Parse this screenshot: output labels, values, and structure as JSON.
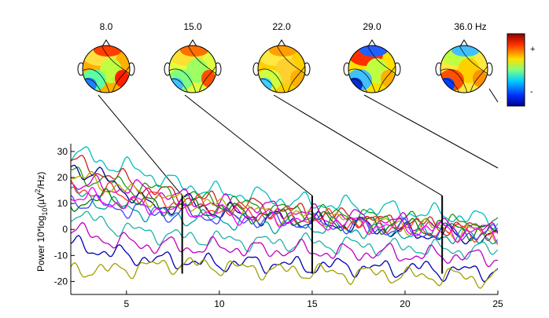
{
  "chart_data": {
    "type": "line",
    "ylabel_prefix": "Power 10*log",
    "ylabel_sub": "10",
    "ylabel_mid": "(µV",
    "ylabel_sup": "2",
    "ylabel_suffix": "/Hz)",
    "xlim": [
      2,
      25
    ],
    "ylim": [
      -25,
      33
    ],
    "xticks": [
      5,
      10,
      15,
      20,
      25
    ],
    "yticks": [
      -20,
      -10,
      0,
      10,
      20,
      30
    ],
    "markers": [
      8,
      15,
      22
    ],
    "colorbar": {
      "plus_label": "+",
      "minus_label": "-"
    },
    "topomaps": [
      {
        "label": "8.0",
        "freq": 8
      },
      {
        "label": "15.0",
        "freq": 15
      },
      {
        "label": "22.0",
        "freq": 22
      },
      {
        "label": "29.0",
        "freq": 29
      },
      {
        "label": "36.0 Hz",
        "freq": 36
      }
    ],
    "series": [
      {
        "color": "#00c0c0",
        "values": [
          30,
          28,
          25,
          24,
          22,
          19,
          17,
          16,
          14,
          14,
          13,
          12,
          11,
          10,
          10,
          9,
          8,
          8,
          7,
          6,
          6,
          5,
          4,
          3
        ]
      },
      {
        "color": "#cc2020",
        "values": [
          26,
          24,
          21,
          19,
          16,
          14,
          13,
          12,
          10,
          9,
          9,
          8,
          7,
          6,
          5,
          5,
          4,
          3,
          3,
          2,
          1,
          1,
          0,
          0
        ]
      },
      {
        "color": "#1a9a1a",
        "values": [
          22,
          20,
          18,
          17,
          16,
          15,
          13,
          12,
          11,
          10,
          9,
          8,
          7,
          7,
          6,
          6,
          5,
          4,
          4,
          3,
          3,
          2,
          2,
          2
        ]
      },
      {
        "color": "#00008b",
        "values": [
          24,
          22,
          19,
          15,
          10,
          8,
          11,
          9,
          7,
          6,
          5,
          4,
          4,
          3,
          2,
          2,
          1,
          0,
          -1,
          -2,
          -2,
          -3,
          -3,
          -4
        ]
      },
      {
        "color": "#cc00cc",
        "values": [
          18,
          17,
          16,
          16,
          15,
          14,
          12,
          11,
          10,
          9,
          8,
          8,
          7,
          6,
          5,
          5,
          4,
          3,
          3,
          2,
          1,
          1,
          0,
          0
        ]
      },
      {
        "color": "#b0b000",
        "values": [
          20,
          19,
          17,
          15,
          13,
          12,
          11,
          10,
          9,
          8,
          7,
          6,
          5,
          5,
          4,
          3,
          3,
          2,
          1,
          1,
          0,
          -1,
          -1,
          -2
        ]
      },
      {
        "color": "#00a0a0",
        "values": [
          14,
          12,
          10,
          8,
          7,
          6,
          5,
          4,
          4,
          3,
          3,
          2,
          2,
          1,
          1,
          0,
          0,
          -1,
          -1,
          -2,
          -2,
          -3,
          -3,
          -3
        ]
      },
      {
        "color": "#ff3030",
        "values": [
          16,
          15,
          14,
          13,
          12,
          11,
          10,
          9,
          8,
          7,
          6,
          6,
          5,
          4,
          4,
          3,
          2,
          2,
          1,
          0,
          0,
          -1,
          -1,
          -2
        ]
      },
      {
        "color": "#008000",
        "values": [
          10,
          11,
          12,
          11,
          10,
          9,
          9,
          8,
          8,
          7,
          6,
          5,
          5,
          4,
          4,
          3,
          3,
          2,
          2,
          1,
          1,
          0,
          0,
          -1
        ]
      },
      {
        "color": "#20b2aa",
        "values": [
          7,
          4,
          2,
          0,
          -1,
          -2,
          -3,
          -3,
          -4,
          -4,
          -5,
          -5,
          -5,
          -5,
          -6,
          -6,
          -6,
          -7,
          -7,
          -7,
          -8,
          -8,
          -8,
          -8
        ]
      },
      {
        "color": "#c000c0",
        "values": [
          0,
          -2,
          -4,
          -5,
          -6,
          -6,
          -7,
          -7,
          -7,
          -7,
          -8,
          -8,
          -8,
          -8,
          -9,
          -9,
          -9,
          -9,
          -10,
          -10,
          -10,
          -10,
          -11,
          -11
        ]
      },
      {
        "color": "#0000b0",
        "values": [
          -6,
          -7,
          -9,
          -10,
          -11,
          -12,
          -12,
          -13,
          -13,
          -13,
          -13,
          -13,
          -14,
          -14,
          -14,
          -14,
          -15,
          -15,
          -15,
          -15,
          -16,
          -16,
          -16,
          -16
        ]
      },
      {
        "color": "#a0a000",
        "values": [
          -16,
          -15,
          -16,
          -15,
          -14,
          -14,
          -13,
          -14,
          -14,
          -15,
          -15,
          -16,
          -16,
          -16,
          -17,
          -17,
          -17,
          -17,
          -18,
          -18,
          -18,
          -18,
          -19,
          -19
        ]
      },
      {
        "color": "#4040ff",
        "values": [
          12,
          10,
          9,
          8,
          7,
          6,
          6,
          5,
          5,
          4,
          4,
          3,
          3,
          2,
          2,
          1,
          1,
          0,
          0,
          -1,
          -1,
          -1,
          -2,
          -2
        ]
      },
      {
        "color": "#ff00ff",
        "values": [
          13,
          12,
          11,
          10,
          9,
          8,
          7,
          7,
          6,
          5,
          5,
          4,
          4,
          3,
          3,
          2,
          2,
          1,
          1,
          0,
          0,
          -1,
          -1,
          -2
        ]
      }
    ]
  }
}
